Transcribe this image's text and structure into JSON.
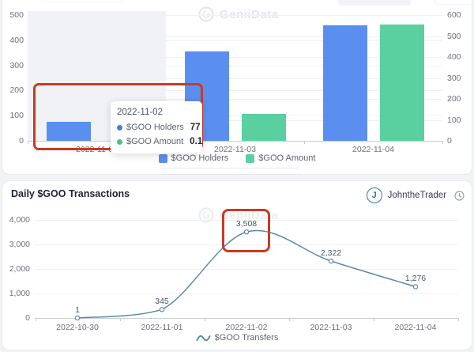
{
  "brand": {
    "watermark_text": "GeniiData"
  },
  "top_chart": {
    "legend": [
      {
        "name": "$GOO Holders",
        "color": "#5a8ff0"
      },
      {
        "name": "$GOO Amount",
        "color": "#5ad0a0"
      }
    ],
    "tooltip": {
      "title": "2022-11-02",
      "rows": [
        {
          "name": "$GOO Holders",
          "value": "77",
          "color": "#5a8ff0"
        },
        {
          "name": "$GOO Amount",
          "value": "0.1",
          "color": "#5ad0a0"
        }
      ]
    }
  },
  "bottom_chart": {
    "title": "Daily $GOO Transactions",
    "author": {
      "initial": "J",
      "name": "JohntheTrader"
    },
    "legend": "$GOO Transfers"
  },
  "chart_data": [
    {
      "type": "bar",
      "categories": [
        "2022-11-02",
        "2022-11-03",
        "2022-11-04"
      ],
      "series": [
        {
          "name": "$GOO Holders",
          "axis": "left",
          "color": "#5a8ff0",
          "values": [
            77,
            355,
            460
          ]
        },
        {
          "name": "$GOO Amount",
          "axis": "right",
          "color": "#5ad0a0",
          "values": [
            0.1,
            130,
            555
          ]
        }
      ],
      "left_axis_ticks": [
        0,
        100,
        200,
        300,
        400,
        500
      ],
      "right_axis_ticks": [
        0,
        100,
        200,
        300,
        400,
        500,
        600
      ],
      "left_max": 500,
      "right_max": 600,
      "legend_position": "bottom",
      "highlighted_category": "2022-11-02"
    },
    {
      "type": "line",
      "x": [
        "2022-10-30",
        "2022-11-01",
        "2022-11-02",
        "2022-11-03",
        "2022-11-04"
      ],
      "values": [
        1,
        345,
        3508,
        2322,
        1276
      ],
      "value_labels": [
        "1",
        "345",
        "3,508",
        "2,322",
        "1,276"
      ],
      "y_ticks": [
        "0",
        "1,000",
        "2,000",
        "3,000",
        "4,000"
      ],
      "ylim": [
        0,
        4000
      ],
      "series_name": "$GOO Transfers",
      "title": "Daily $GOO Transactions",
      "color": "#5b89ae"
    }
  ],
  "annotations": {
    "color": "#c93a27"
  }
}
